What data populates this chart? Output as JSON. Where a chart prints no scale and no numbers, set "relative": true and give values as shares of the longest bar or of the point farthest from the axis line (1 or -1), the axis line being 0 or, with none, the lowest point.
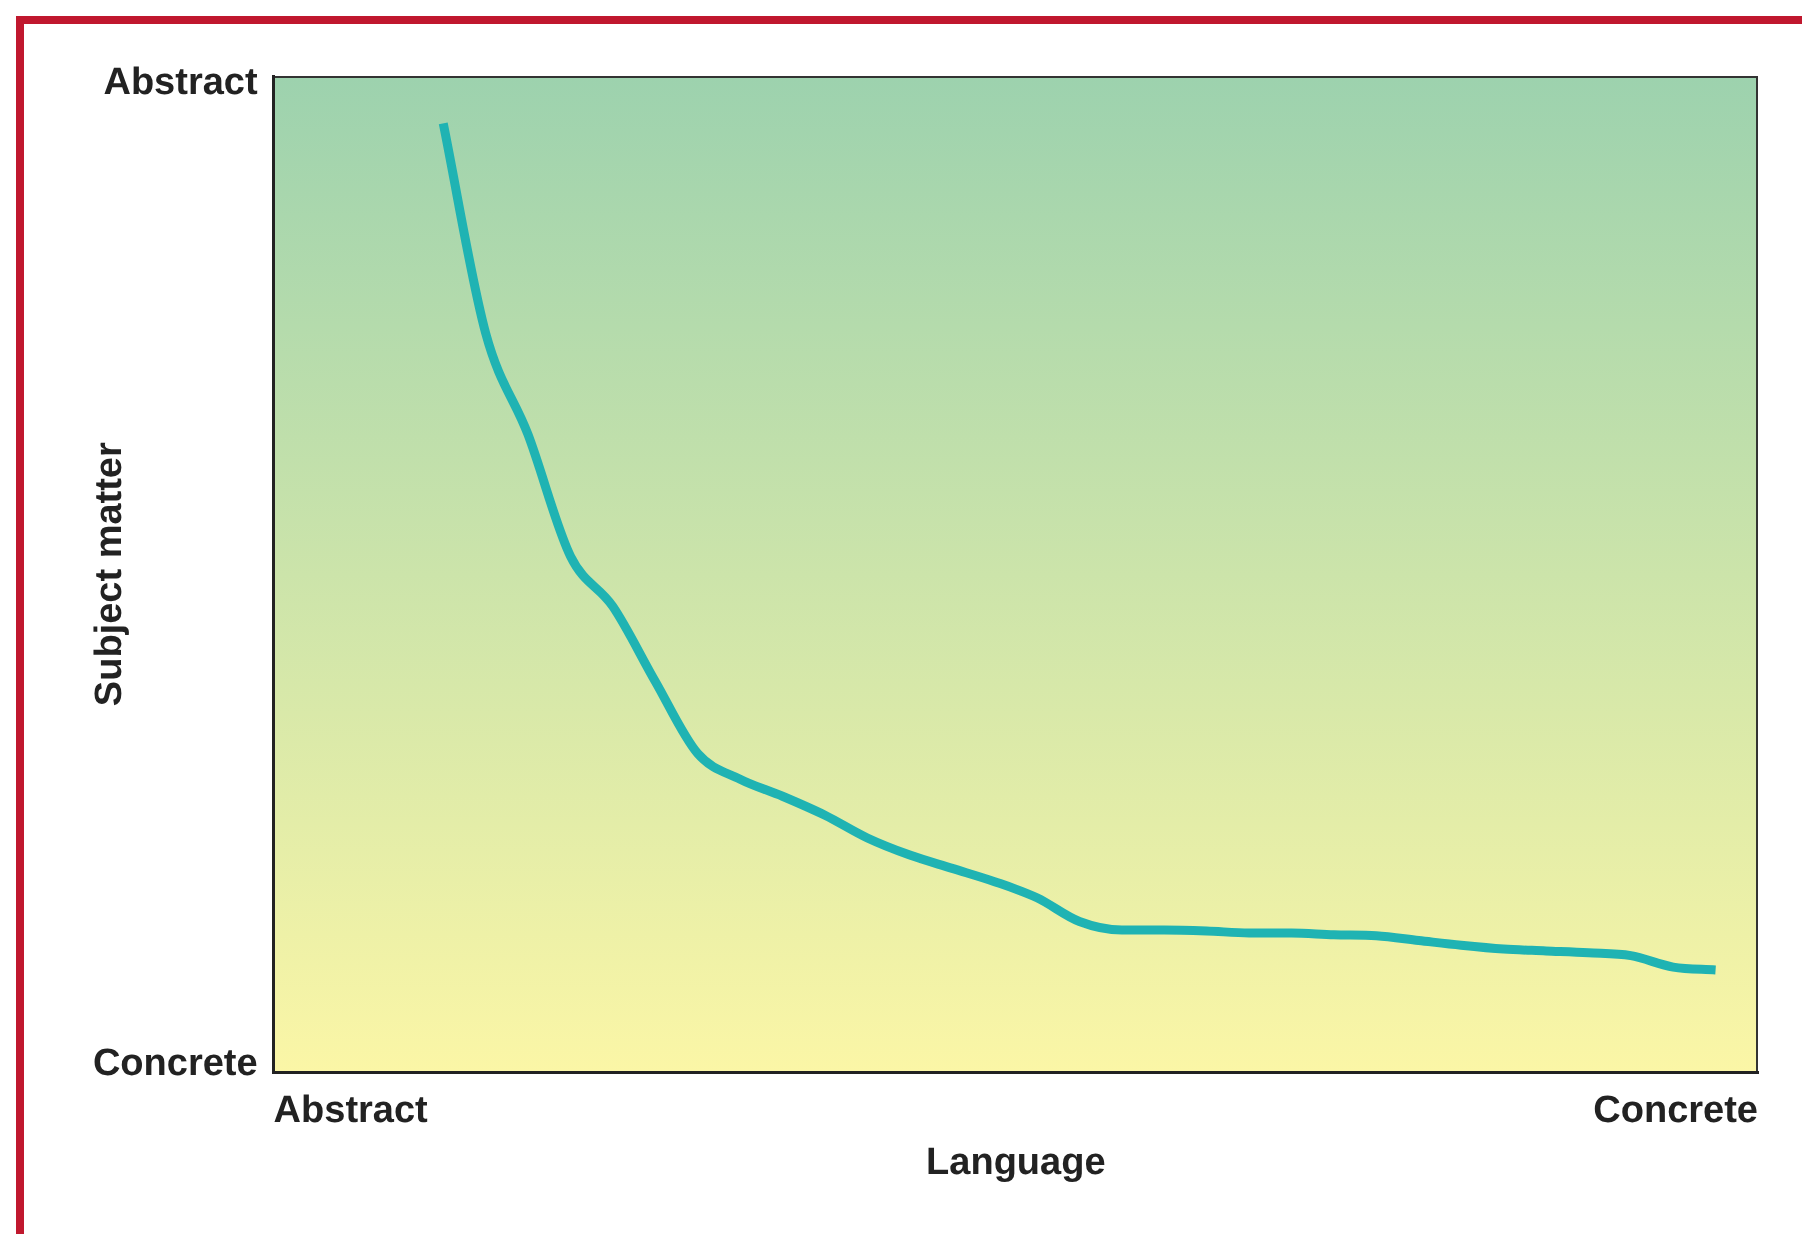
{
  "chart_data": {
    "type": "line",
    "relative": true,
    "xlabel": "Language",
    "ylabel": "Subject matter",
    "annotations": [
      "Abstract",
      "Concrete",
      "Abstract",
      "Concrete"
    ],
    "grid": false,
    "legend": false,
    "marker": "none",
    "line_style": "solid",
    "categories": [
      null,
      null,
      null,
      null,
      null,
      null,
      null,
      null,
      null,
      null,
      null,
      null,
      null,
      null,
      null,
      null,
      null,
      null,
      null,
      null,
      null,
      null,
      null,
      null,
      null,
      null,
      null,
      null,
      null,
      null,
      null,
      null,
      null,
      null,
      null,
      null
    ],
    "series": [
      {
        "color": "#1fb3b3",
        "values": [
          null,
          null,
          null,
          null,
          1,
          0.779,
          0.672,
          0.544,
          0.491,
          0.412,
          0.336,
          0.309,
          0.291,
          0.271,
          0.247,
          0.229,
          0.215,
          0.201,
          0.184,
          0.159,
          0.15,
          0.15,
          0.149,
          0.147,
          0.147,
          0.145,
          0.144,
          0.139,
          0.134,
          0.13,
          0.128,
          0.126,
          0.123,
          0.111,
          0.108,
          null
        ]
      }
    ]
  }
}
